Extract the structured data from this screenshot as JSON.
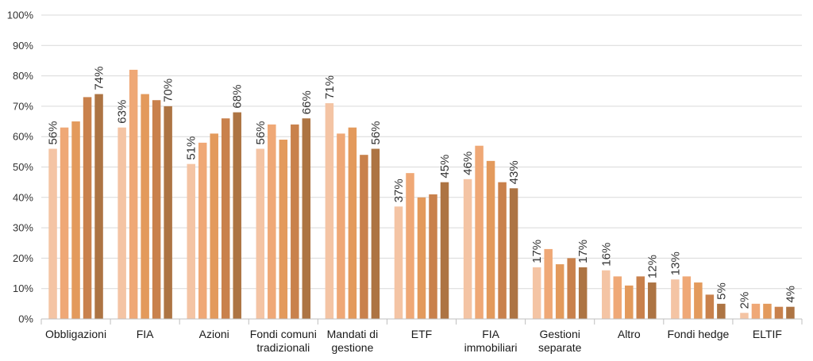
{
  "chart_data": {
    "type": "bar",
    "categories": [
      [
        "Obbligazioni"
      ],
      [
        "FIA"
      ],
      [
        "Azioni"
      ],
      [
        "Fondi comuni",
        "tradizionali"
      ],
      [
        "Mandati di",
        "gestione"
      ],
      [
        "ETF"
      ],
      [
        "FIA",
        "immobiliari"
      ],
      [
        "Gestioni",
        "separate"
      ],
      [
        "Altro"
      ],
      [
        "Fondi hedge"
      ],
      [
        "ELTIF"
      ]
    ],
    "series": [
      {
        "color": "#f4c4a4",
        "values": [
          56,
          63,
          51,
          56,
          71,
          37,
          46,
          17,
          16,
          13,
          2
        ]
      },
      {
        "color": "#efa876",
        "values": [
          63,
          82,
          58,
          64,
          61,
          48,
          57,
          23,
          14,
          14,
          5
        ]
      },
      {
        "color": "#e39a5c",
        "values": [
          65,
          74,
          61,
          59,
          63,
          40,
          52,
          18,
          11,
          12,
          5
        ]
      },
      {
        "color": "#c9814c",
        "values": [
          73,
          72,
          66,
          64,
          54,
          41,
          45,
          20,
          14,
          8,
          4
        ]
      },
      {
        "color": "#ad7443",
        "values": [
          74,
          70,
          68,
          66,
          56,
          45,
          43,
          17,
          12,
          5,
          4
        ]
      }
    ],
    "data_labels": [
      [
        "56%",
        null,
        null,
        null,
        "74%"
      ],
      [
        "63%",
        null,
        null,
        null,
        "70%"
      ],
      [
        "51%",
        null,
        null,
        null,
        "68%"
      ],
      [
        "56%",
        null,
        null,
        null,
        "66%"
      ],
      [
        "71%",
        null,
        null,
        null,
        "56%"
      ],
      [
        "37%",
        null,
        null,
        null,
        "45%"
      ],
      [
        "46%",
        null,
        null,
        null,
        "43%"
      ],
      [
        "17%",
        null,
        null,
        null,
        "17%"
      ],
      [
        "16%",
        null,
        null,
        null,
        "12%"
      ],
      [
        "13%",
        null,
        null,
        null,
        "5%"
      ],
      [
        "2%",
        null,
        null,
        null,
        "4%"
      ]
    ],
    "y_ticks": [
      "0%",
      "10%",
      "20%",
      "30%",
      "40%",
      "50%",
      "60%",
      "70%",
      "80%",
      "90%",
      "100%"
    ],
    "ylim": [
      0,
      100
    ],
    "title": "",
    "xlabel": "",
    "ylabel": "",
    "grid": true,
    "legend": "none"
  }
}
